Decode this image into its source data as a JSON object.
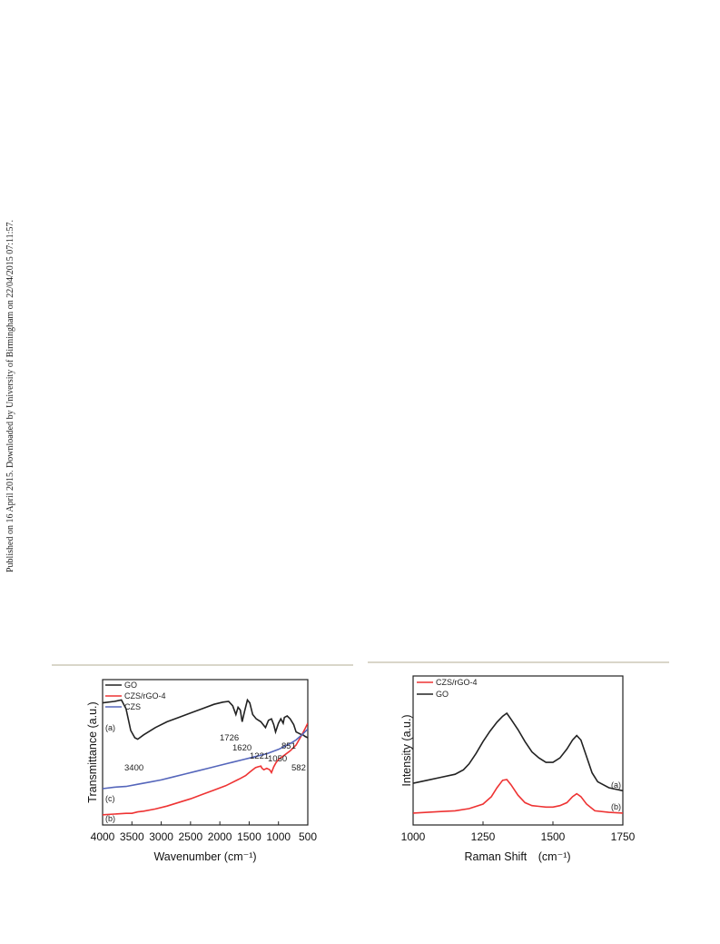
{
  "watermark": "Published on 16 April 2015. Downloaded by University of Birmingham on 22/04/2015 07:11:57.",
  "colors": {
    "black": "#222222",
    "red": "#ee3333",
    "blue": "#5566bb"
  },
  "chart_data": [
    {
      "type": "line",
      "xlabel": "Wavenumber (cm⁻¹)",
      "ylabel": "Transmittance (a.u.)",
      "xlim": [
        4000,
        500
      ],
      "ylim": [
        0,
        100
      ],
      "xticks": [
        4000,
        3500,
        3000,
        2500,
        2000,
        1500,
        1000,
        500
      ],
      "legend": {
        "position": "top-left",
        "entries": [
          "GO",
          "CZS/rGO-4",
          "CZS"
        ]
      },
      "series": [
        {
          "name": "GO",
          "color": "#222222",
          "label": "(a)",
          "points": [
            [
              4000,
              84
            ],
            [
              3800,
              85
            ],
            [
              3680,
              86
            ],
            [
              3600,
              80
            ],
            [
              3520,
              65
            ],
            [
              3450,
              60
            ],
            [
              3400,
              59
            ],
            [
              3300,
              62
            ],
            [
              3100,
              67
            ],
            [
              2900,
              71
            ],
            [
              2700,
              74
            ],
            [
              2500,
              77
            ],
            [
              2300,
              80
            ],
            [
              2100,
              83
            ],
            [
              1950,
              84.5
            ],
            [
              1850,
              85
            ],
            [
              1780,
              82
            ],
            [
              1726,
              76
            ],
            [
              1690,
              81
            ],
            [
              1650,
              79
            ],
            [
              1620,
              71
            ],
            [
              1580,
              78
            ],
            [
              1530,
              86
            ],
            [
              1490,
              84
            ],
            [
              1440,
              76
            ],
            [
              1380,
              73
            ],
            [
              1300,
              71
            ],
            [
              1221,
              67
            ],
            [
              1170,
              72
            ],
            [
              1120,
              73
            ],
            [
              1080,
              69
            ],
            [
              1050,
              64
            ],
            [
              1000,
              70
            ],
            [
              960,
              73
            ],
            [
              920,
              70
            ],
            [
              900,
              74
            ],
            [
              851,
              75
            ],
            [
              800,
              73
            ],
            [
              740,
              69
            ],
            [
              700,
              64
            ],
            [
              650,
              63
            ],
            [
              600,
              62
            ],
            [
              582,
              62
            ],
            [
              550,
              61
            ],
            [
              500,
              60
            ]
          ]
        },
        {
          "name": "CZS/rGO-4",
          "color": "#ee3333",
          "label": "(b)",
          "points": [
            [
              4000,
              7
            ],
            [
              3800,
              7.5
            ],
            [
              3600,
              8
            ],
            [
              3500,
              8
            ],
            [
              3400,
              9
            ],
            [
              3300,
              9.5
            ],
            [
              3100,
              11
            ],
            [
              2900,
              13
            ],
            [
              2700,
              15.5
            ],
            [
              2500,
              18
            ],
            [
              2300,
              21
            ],
            [
              2100,
              24
            ],
            [
              1900,
              27
            ],
            [
              1700,
              31
            ],
            [
              1650,
              32
            ],
            [
              1560,
              34
            ],
            [
              1500,
              36
            ],
            [
              1440,
              38
            ],
            [
              1390,
              39.5
            ],
            [
              1350,
              40
            ],
            [
              1300,
              40.5
            ],
            [
              1280,
              39
            ],
            [
              1250,
              38
            ],
            [
              1200,
              39
            ],
            [
              1150,
              38
            ],
            [
              1120,
              36
            ],
            [
              1080,
              40
            ],
            [
              1040,
              43
            ],
            [
              1000,
              45
            ],
            [
              900,
              48
            ],
            [
              800,
              51
            ],
            [
              700,
              55
            ],
            [
              600,
              62
            ],
            [
              550,
              66
            ],
            [
              500,
              70
            ]
          ]
        },
        {
          "name": "CZS",
          "color": "#5566bb",
          "label": "(c)",
          "points": [
            [
              4000,
              25
            ],
            [
              3800,
              26
            ],
            [
              3600,
              26.5
            ],
            [
              3400,
              28
            ],
            [
              3200,
              29.5
            ],
            [
              3000,
              31
            ],
            [
              2800,
              33
            ],
            [
              2600,
              35
            ],
            [
              2400,
              37
            ],
            [
              2200,
              39
            ],
            [
              2000,
              41
            ],
            [
              1800,
              43
            ],
            [
              1600,
              45
            ],
            [
              1400,
              47
            ],
            [
              1200,
              49
            ],
            [
              1000,
              52
            ],
            [
              900,
              54
            ],
            [
              800,
              56
            ],
            [
              700,
              58.5
            ],
            [
              600,
              62
            ],
            [
              500,
              66
            ]
          ]
        }
      ],
      "annotations": [
        "3400",
        "1726",
        "1620",
        "1221",
        "1050",
        "851",
        "582"
      ]
    },
    {
      "type": "line",
      "xlabel": "Raman Shift　(cm⁻¹)",
      "ylabel": "Intensity (a.u.)",
      "xlim": [
        1000,
        1750
      ],
      "ylim": [
        0,
        100
      ],
      "xticks": [
        1000,
        1250,
        1500,
        1750
      ],
      "legend": {
        "position": "top-left",
        "entries": [
          "CZS/rGO-4",
          "GO"
        ]
      },
      "series": [
        {
          "name": "CZS/rGO-4",
          "color": "#ee3333",
          "label": "(b)",
          "points": [
            [
              1000,
              8
            ],
            [
              1050,
              8.5
            ],
            [
              1100,
              9
            ],
            [
              1150,
              9.5
            ],
            [
              1200,
              11
            ],
            [
              1250,
              14
            ],
            [
              1280,
              19
            ],
            [
              1300,
              25
            ],
            [
              1320,
              30
            ],
            [
              1335,
              30.5
            ],
            [
              1350,
              27
            ],
            [
              1375,
              20
            ],
            [
              1400,
              15
            ],
            [
              1425,
              13
            ],
            [
              1450,
              12.5
            ],
            [
              1475,
              12
            ],
            [
              1500,
              12
            ],
            [
              1525,
              13
            ],
            [
              1550,
              15
            ],
            [
              1570,
              19
            ],
            [
              1585,
              21
            ],
            [
              1600,
              19
            ],
            [
              1620,
              14
            ],
            [
              1650,
              9.5
            ],
            [
              1700,
              8.5
            ],
            [
              1750,
              8
            ]
          ]
        },
        {
          "name": "GO",
          "color": "#222222",
          "label": "(a)",
          "points": [
            [
              1000,
              28
            ],
            [
              1050,
              30
            ],
            [
              1100,
              32
            ],
            [
              1150,
              34
            ],
            [
              1180,
              37
            ],
            [
              1200,
              41
            ],
            [
              1225,
              48
            ],
            [
              1250,
              56
            ],
            [
              1275,
              63
            ],
            [
              1300,
              69
            ],
            [
              1320,
              73
            ],
            [
              1335,
              75
            ],
            [
              1350,
              71
            ],
            [
              1375,
              64
            ],
            [
              1400,
              56
            ],
            [
              1425,
              49
            ],
            [
              1450,
              45
            ],
            [
              1475,
              42
            ],
            [
              1500,
              42
            ],
            [
              1525,
              45
            ],
            [
              1550,
              51
            ],
            [
              1570,
              57
            ],
            [
              1585,
              60
            ],
            [
              1600,
              57
            ],
            [
              1620,
              46
            ],
            [
              1640,
              35
            ],
            [
              1660,
              29
            ],
            [
              1700,
              25
            ],
            [
              1750,
              23
            ]
          ]
        }
      ]
    }
  ]
}
